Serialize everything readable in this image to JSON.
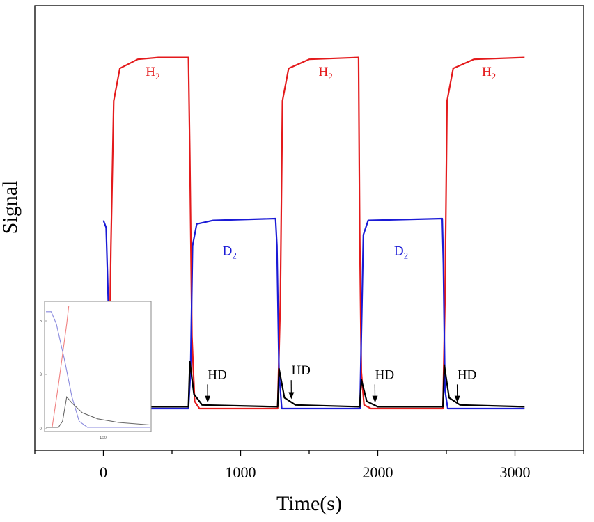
{
  "chart_data": {
    "type": "line",
    "title": "",
    "xlabel": "Time(s)",
    "ylabel": "Signal",
    "xlim": [
      -500,
      3500
    ],
    "ylim": [
      0,
      1
    ],
    "x_ticks": [
      0,
      1000,
      2000,
      3000
    ],
    "x_tick_labels": [
      "0",
      "1000",
      "2000",
      "3000"
    ],
    "y_ticks_shown": false,
    "grid": false,
    "colors": {
      "H2": "#e41a1c",
      "D2": "#1a1ad6",
      "HD": "#000000",
      "axis": "#000000"
    },
    "series": [
      {
        "key": "H2",
        "color": "#e41a1c",
        "points": [
          [
            0,
            0.01
          ],
          [
            20,
            0.01
          ],
          [
            40,
            0.05
          ],
          [
            55,
            0.45
          ],
          [
            75,
            0.85
          ],
          [
            120,
            0.94
          ],
          [
            250,
            0.965
          ],
          [
            400,
            0.97
          ],
          [
            620,
            0.97
          ],
          [
            630,
            0.7
          ],
          [
            645,
            0.2
          ],
          [
            665,
            0.02
          ],
          [
            700,
            0.0
          ],
          [
            1270,
            0.0
          ],
          [
            1290,
            0.3
          ],
          [
            1305,
            0.85
          ],
          [
            1350,
            0.94
          ],
          [
            1500,
            0.965
          ],
          [
            1860,
            0.97
          ],
          [
            1868,
            0.5
          ],
          [
            1880,
            0.1
          ],
          [
            1900,
            0.01
          ],
          [
            1950,
            0.0
          ],
          [
            2475,
            0.0
          ],
          [
            2490,
            0.3
          ],
          [
            2505,
            0.85
          ],
          [
            2550,
            0.94
          ],
          [
            2700,
            0.965
          ],
          [
            3070,
            0.97
          ]
        ]
      },
      {
        "key": "D2",
        "color": "#1a1ad6",
        "points": [
          [
            0,
            0.52
          ],
          [
            20,
            0.5
          ],
          [
            35,
            0.3
          ],
          [
            50,
            0.05
          ],
          [
            80,
            0.0
          ],
          [
            620,
            0.0
          ],
          [
            635,
            0.1
          ],
          [
            650,
            0.45
          ],
          [
            680,
            0.51
          ],
          [
            800,
            0.52
          ],
          [
            1255,
            0.525
          ],
          [
            1265,
            0.45
          ],
          [
            1280,
            0.1
          ],
          [
            1300,
            0.0
          ],
          [
            1870,
            0.0
          ],
          [
            1880,
            0.2
          ],
          [
            1895,
            0.48
          ],
          [
            1930,
            0.52
          ],
          [
            2470,
            0.525
          ],
          [
            2478,
            0.4
          ],
          [
            2490,
            0.05
          ],
          [
            2510,
            0.0
          ],
          [
            3070,
            0.0
          ]
        ]
      },
      {
        "key": "HD",
        "color": "#000000",
        "points": [
          [
            0,
            0.005
          ],
          [
            20,
            0.01
          ],
          [
            28,
            0.1
          ],
          [
            40,
            0.05
          ],
          [
            80,
            0.03
          ],
          [
            150,
            0.01
          ],
          [
            300,
            0.005
          ],
          [
            620,
            0.005
          ],
          [
            630,
            0.13
          ],
          [
            660,
            0.04
          ],
          [
            720,
            0.01
          ],
          [
            1270,
            0.005
          ],
          [
            1280,
            0.11
          ],
          [
            1320,
            0.03
          ],
          [
            1400,
            0.01
          ],
          [
            1868,
            0.005
          ],
          [
            1880,
            0.08
          ],
          [
            1920,
            0.02
          ],
          [
            2000,
            0.005
          ],
          [
            2475,
            0.005
          ],
          [
            2485,
            0.12
          ],
          [
            2520,
            0.03
          ],
          [
            2600,
            0.01
          ],
          [
            3070,
            0.005
          ]
        ]
      }
    ],
    "series_labels": [
      {
        "text": "H",
        "sub": "2",
        "color": "#e41a1c",
        "x": 360,
        "y": 0.965
      },
      {
        "text": "H",
        "sub": "2",
        "color": "#e41a1c",
        "x": 1620,
        "y": 0.965
      },
      {
        "text": "H",
        "sub": "2",
        "color": "#e41a1c",
        "x": 2810,
        "y": 0.965
      },
      {
        "text": "D",
        "sub": "2",
        "color": "#1a1ad6",
        "x": 920,
        "y": 0.47
      },
      {
        "text": "D",
        "sub": "2",
        "color": "#1a1ad6",
        "x": 2170,
        "y": 0.47
      }
    ],
    "annotations": [
      {
        "text": "HD",
        "x": 240,
        "y": 0.135,
        "arrow_to": [
          150,
          0.045
        ]
      },
      {
        "text": "HD",
        "x": 830,
        "y": 0.082,
        "arrow_to": [
          760,
          0.02
        ]
      },
      {
        "text": "HD",
        "x": 1440,
        "y": 0.094,
        "arrow_to": [
          1370,
          0.03
        ]
      },
      {
        "text": "HD",
        "x": 2050,
        "y": 0.082,
        "arrow_to": [
          1980,
          0.02
        ]
      },
      {
        "text": "HD",
        "x": 2650,
        "y": 0.082,
        "arrow_to": [
          2580,
          0.02
        ]
      }
    ],
    "inset": {
      "x_tick_labels": [
        "100"
      ],
      "y_tick_labels": [
        "5",
        "3",
        "0"
      ],
      "colors": {
        "D2": "#8888dd",
        "H2": "#f08080",
        "HD": "#666666"
      },
      "series": [
        {
          "key": "D2",
          "points": [
            [
              0,
              0.95
            ],
            [
              0.05,
              0.95
            ],
            [
              0.1,
              0.85
            ],
            [
              0.18,
              0.55
            ],
            [
              0.25,
              0.25
            ],
            [
              0.32,
              0.05
            ],
            [
              0.4,
              0.0
            ],
            [
              1,
              0.0
            ]
          ]
        },
        {
          "key": "H2",
          "points": [
            [
              0,
              0.0
            ],
            [
              0.06,
              0.0
            ],
            [
              0.12,
              0.35
            ],
            [
              0.2,
              0.85
            ],
            [
              0.22,
              1.0
            ]
          ]
        },
        {
          "key": "HD",
          "points": [
            [
              0,
              0.0
            ],
            [
              0.12,
              0.0
            ],
            [
              0.16,
              0.05
            ],
            [
              0.2,
              0.25
            ],
            [
              0.25,
              0.2
            ],
            [
              0.35,
              0.12
            ],
            [
              0.5,
              0.07
            ],
            [
              0.7,
              0.04
            ],
            [
              1,
              0.02
            ]
          ]
        }
      ]
    }
  }
}
